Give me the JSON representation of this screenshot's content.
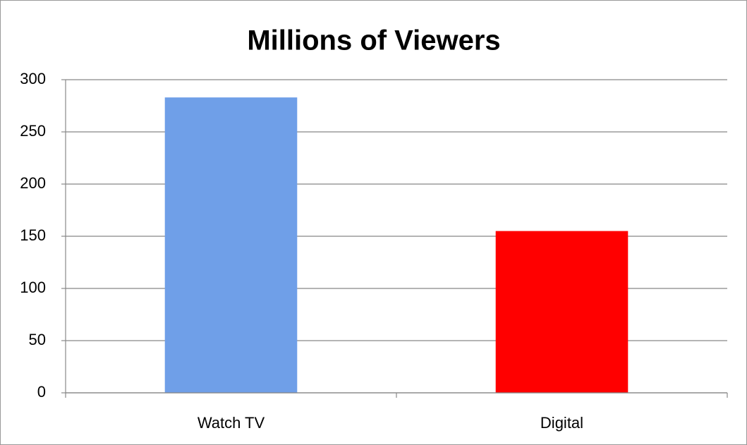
{
  "chart_data": {
    "type": "bar",
    "title": "Millions of Viewers",
    "categories": [
      "Watch TV",
      "Digital"
    ],
    "values": [
      283,
      155
    ],
    "colors": [
      "#6f9fe8",
      "#ff0000"
    ],
    "ylim": [
      0,
      300
    ],
    "yticks": [
      0,
      50,
      100,
      150,
      200,
      250,
      300
    ],
    "grid": true
  }
}
